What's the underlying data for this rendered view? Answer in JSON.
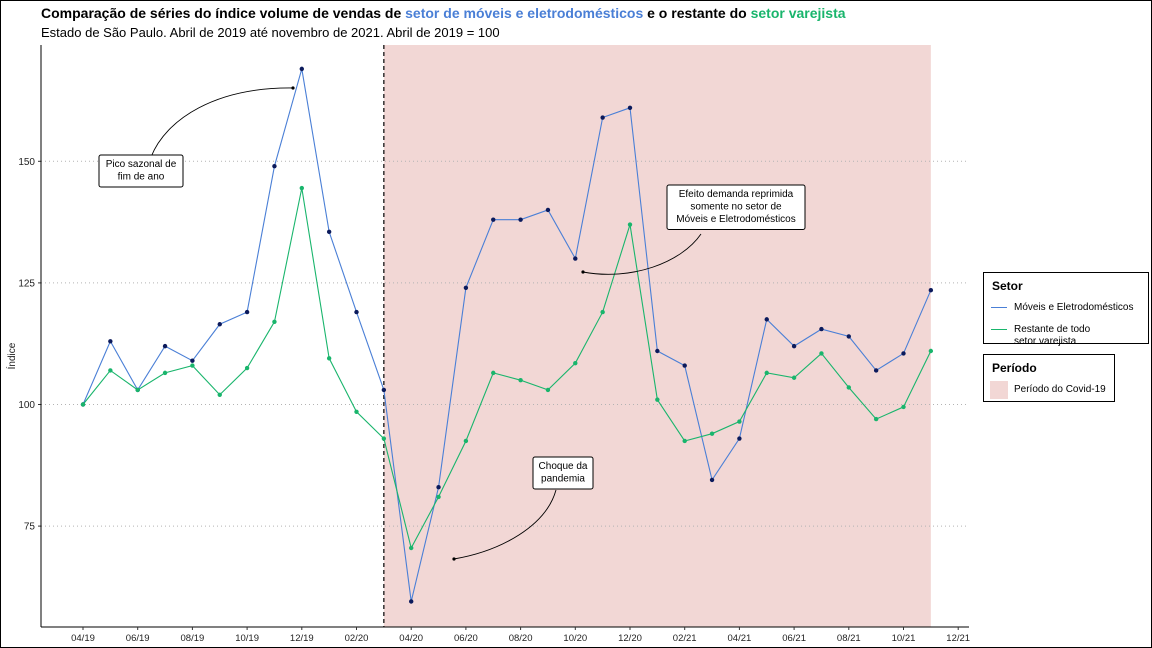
{
  "title": {
    "part1": "Comparação de séries do índice volume de vendas de ",
    "part2": "setor de móveis e eletrodomésticos",
    "part3": " e o restante do ",
    "part4": "setor varejista"
  },
  "subtitle": "Estado de São Paulo. Abril de 2019 até novembro de 2021. Abril de 2019 = 100",
  "colors": {
    "moveis": "#4a7fd6",
    "moveis_points": "#0b1a5c",
    "restante": "#19b56c",
    "covid_fill": "#f2d7d5",
    "grid": "#b3b3b3"
  },
  "chart_data": {
    "type": "line",
    "ylabel": "Índice",
    "xlabel": "",
    "x": [
      "04/19",
      "05/19",
      "06/19",
      "07/19",
      "08/19",
      "09/19",
      "10/19",
      "11/19",
      "12/19",
      "01/20",
      "02/20",
      "03/20",
      "04/20",
      "05/20",
      "06/20",
      "07/20",
      "08/20",
      "09/20",
      "10/20",
      "11/20",
      "12/20",
      "01/21",
      "02/21",
      "03/21",
      "04/21",
      "05/21",
      "06/21",
      "07/21",
      "08/21",
      "09/21",
      "10/21",
      "11/21"
    ],
    "x_ticks": [
      "04/19",
      "06/19",
      "08/19",
      "10/19",
      "12/19",
      "02/20",
      "04/20",
      "06/20",
      "08/20",
      "10/20",
      "12/20",
      "02/21",
      "04/21",
      "06/21",
      "08/21",
      "10/21",
      "12/21"
    ],
    "y_ticks": [
      75,
      100,
      125,
      150
    ],
    "ylim": [
      58,
      170
    ],
    "grid": "horizontal dotted",
    "series": [
      {
        "name": "Móveis e Eletrodomésticos",
        "key": "moveis",
        "values": [
          100,
          113,
          103,
          112,
          109,
          116.5,
          119,
          149,
          169,
          135.5,
          119,
          103,
          59.5,
          83,
          124,
          138,
          138,
          140,
          130,
          159,
          161,
          111,
          108,
          84.5,
          93,
          117.5,
          112,
          115.5,
          114,
          107,
          110.5,
          123.5
        ]
      },
      {
        "name": "Restante de todo\nsetor varejista",
        "key": "restante",
        "values": [
          100,
          107,
          103,
          106.5,
          108,
          102,
          107.5,
          117,
          144.5,
          109.5,
          98.5,
          93,
          70.5,
          81,
          92.5,
          106.5,
          105,
          103,
          108.5,
          119,
          137,
          101,
          92.5,
          94,
          96.5,
          106.5,
          105.5,
          110.5,
          103.5,
          97,
          99.5,
          111
        ]
      }
    ],
    "covid_period": {
      "start": "03/20",
      "end": "11/21",
      "label": "Período do Covid-19"
    },
    "vline_at": "03/20",
    "annotations": [
      {
        "key": "pico",
        "lines": [
          "Pico sazonal de",
          "fim de ano"
        ]
      },
      {
        "key": "efeito",
        "lines": [
          "Efeito demanda reprimida",
          "somente no setor de",
          "Móveis e Eletrodomésticos"
        ]
      },
      {
        "key": "choque",
        "lines": [
          "Choque da",
          "pandemia"
        ]
      }
    ],
    "legend_placement": "right"
  },
  "legend": {
    "setor_title": "Setor",
    "periodo_title": "Período"
  }
}
